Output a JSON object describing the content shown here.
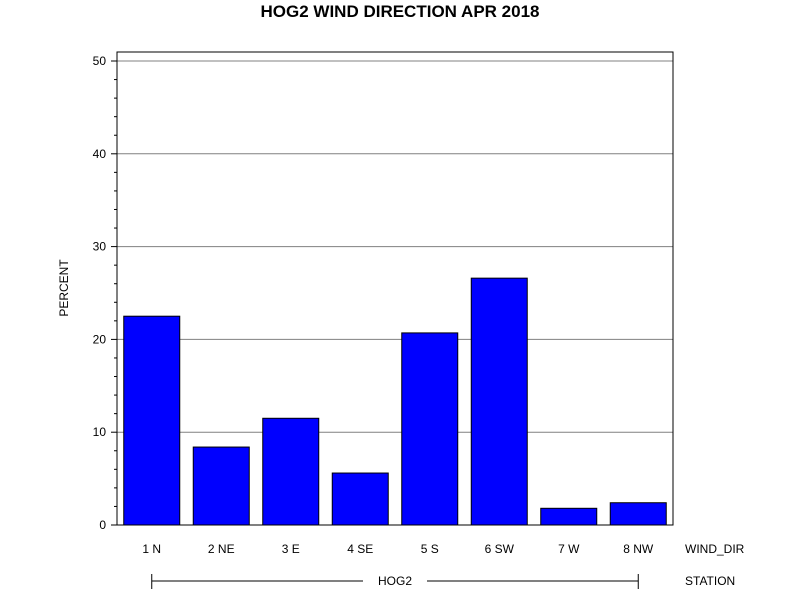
{
  "chart_data": {
    "type": "bar",
    "title": "HOG2 WIND DIRECTION APR 2018",
    "ylabel": "PERCENT",
    "xlabel": "WIND_DIR",
    "group_label_title": "STATION",
    "group_label": "HOG2",
    "categories": [
      "1 N",
      "2 NE",
      "3 E",
      "4 SE",
      "5 S",
      "6 SW",
      "7 W",
      "8 NW"
    ],
    "values": [
      22.5,
      8.4,
      11.5,
      5.6,
      20.7,
      26.6,
      1.8,
      2.4
    ],
    "ylim": [
      0,
      50
    ],
    "yticks": [
      0,
      10,
      20,
      30,
      40,
      50
    ],
    "grid": true,
    "legend": "none",
    "bar_color": "#0000ff",
    "bar_edge_color": "#000000",
    "grid_color": "#808080"
  }
}
